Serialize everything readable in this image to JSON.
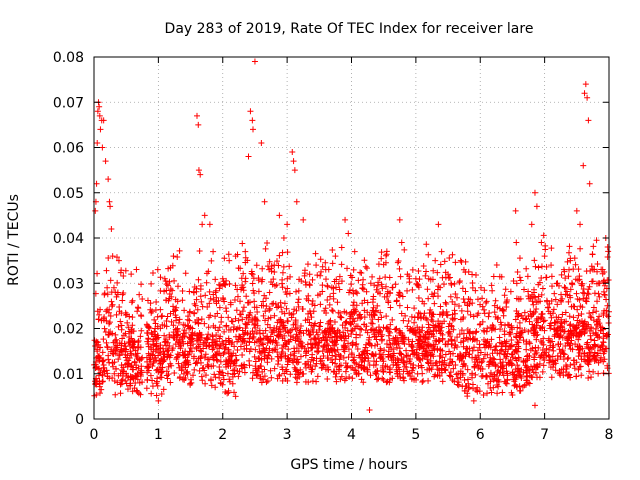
{
  "chart_data": {
    "type": "scatter",
    "title": "Day 283 of 2019, Rate Of TEC Index for receiver lare",
    "xlabel": "GPS time / hours",
    "ylabel": "ROTI / TECUs",
    "xlim": [
      0,
      8
    ],
    "ylim": [
      0,
      0.08
    ],
    "xticks": [
      "0",
      "1",
      "2",
      "3",
      "4",
      "5",
      "6",
      "7",
      "8"
    ],
    "yticks": [
      "0",
      "0.01",
      "0.02",
      "0.03",
      "0.04",
      "0.05",
      "0.06",
      "0.07",
      "0.08"
    ],
    "grid": true,
    "marker": "+",
    "color": "#ff0000",
    "density_note": "Dense cloud of several thousand points; representative values listed below",
    "points": [
      [
        0.02,
        0.046
      ],
      [
        0.03,
        0.048
      ],
      [
        0.04,
        0.052
      ],
      [
        0.05,
        0.061
      ],
      [
        0.06,
        0.068
      ],
      [
        0.07,
        0.07
      ],
      [
        0.08,
        0.069
      ],
      [
        0.09,
        0.067
      ],
      [
        0.1,
        0.064
      ],
      [
        0.12,
        0.066
      ],
      [
        0.13,
        0.06
      ],
      [
        0.15,
        0.066
      ],
      [
        0.18,
        0.057
      ],
      [
        0.22,
        0.053
      ],
      [
        0.24,
        0.048
      ],
      [
        0.25,
        0.047
      ],
      [
        0.27,
        0.042
      ],
      [
        0.29,
        0.036
      ],
      [
        0.31,
        0.029
      ],
      [
        0.33,
        0.028
      ],
      [
        0.35,
        0.023
      ],
      [
        0.07,
        0.022
      ],
      [
        0.08,
        0.023
      ],
      [
        0.06,
        0.017
      ],
      [
        0.45,
        0.015
      ],
      [
        0.55,
        0.017
      ],
      [
        0.62,
        0.016
      ],
      [
        0.85,
        0.016
      ],
      [
        0.95,
        0.02
      ],
      [
        1.0,
        0.018
      ],
      [
        1.1,
        0.031
      ],
      [
        1.2,
        0.027
      ],
      [
        1.3,
        0.026
      ],
      [
        1.4,
        0.024
      ],
      [
        1.55,
        0.028
      ],
      [
        1.6,
        0.067
      ],
      [
        1.62,
        0.065
      ],
      [
        1.63,
        0.055
      ],
      [
        1.65,
        0.054
      ],
      [
        1.68,
        0.043
      ],
      [
        1.72,
        0.045
      ],
      [
        1.8,
        0.043
      ],
      [
        1.85,
        0.037
      ],
      [
        1.9,
        0.026
      ],
      [
        2.0,
        0.031
      ],
      [
        2.1,
        0.035
      ],
      [
        2.2,
        0.036
      ],
      [
        2.3,
        0.029
      ],
      [
        2.35,
        0.037
      ],
      [
        2.4,
        0.058
      ],
      [
        2.43,
        0.068
      ],
      [
        2.46,
        0.066
      ],
      [
        2.47,
        0.064
      ],
      [
        2.5,
        0.079
      ],
      [
        2.6,
        0.061
      ],
      [
        2.65,
        0.048
      ],
      [
        2.72,
        0.033
      ],
      [
        2.8,
        0.034
      ],
      [
        2.88,
        0.045
      ],
      [
        2.95,
        0.04
      ],
      [
        3.0,
        0.043
      ],
      [
        3.08,
        0.059
      ],
      [
        3.1,
        0.057
      ],
      [
        3.12,
        0.055
      ],
      [
        3.15,
        0.048
      ],
      [
        3.25,
        0.044
      ],
      [
        3.35,
        0.032
      ],
      [
        3.45,
        0.034
      ],
      [
        3.6,
        0.033
      ],
      [
        3.75,
        0.036
      ],
      [
        3.9,
        0.044
      ],
      [
        3.95,
        0.041
      ],
      [
        4.05,
        0.037
      ],
      [
        4.2,
        0.024
      ],
      [
        4.3,
        0.03
      ],
      [
        4.4,
        0.025
      ],
      [
        4.55,
        0.027
      ],
      [
        4.7,
        0.026
      ],
      [
        4.75,
        0.044
      ],
      [
        4.78,
        0.039
      ],
      [
        4.9,
        0.031
      ],
      [
        5.0,
        0.031
      ],
      [
        5.1,
        0.026
      ],
      [
        5.2,
        0.031
      ],
      [
        5.3,
        0.035
      ],
      [
        5.35,
        0.043
      ],
      [
        5.4,
        0.037
      ],
      [
        5.5,
        0.032
      ],
      [
        5.6,
        0.024
      ],
      [
        5.7,
        0.022
      ],
      [
        5.85,
        0.023
      ],
      [
        6.0,
        0.021
      ],
      [
        6.1,
        0.026
      ],
      [
        6.2,
        0.02
      ],
      [
        6.3,
        0.018
      ],
      [
        6.4,
        0.016
      ],
      [
        6.55,
        0.046
      ],
      [
        6.56,
        0.039
      ],
      [
        6.7,
        0.022
      ],
      [
        6.8,
        0.043
      ],
      [
        6.85,
        0.05
      ],
      [
        6.88,
        0.047
      ],
      [
        6.95,
        0.039
      ],
      [
        7.0,
        0.036
      ],
      [
        7.1,
        0.034
      ],
      [
        7.2,
        0.03
      ],
      [
        7.3,
        0.033
      ],
      [
        7.4,
        0.035
      ],
      [
        7.5,
        0.046
      ],
      [
        7.55,
        0.043
      ],
      [
        7.6,
        0.056
      ],
      [
        7.62,
        0.072
      ],
      [
        7.64,
        0.074
      ],
      [
        7.66,
        0.071
      ],
      [
        7.68,
        0.066
      ],
      [
        7.7,
        0.052
      ],
      [
        7.75,
        0.033
      ],
      [
        7.85,
        0.027
      ],
      [
        7.95,
        0.04
      ],
      [
        7.98,
        0.038
      ],
      [
        4.28,
        0.002
      ],
      [
        6.85,
        0.003
      ],
      [
        1.0,
        0.004
      ],
      [
        2.2,
        0.005
      ],
      [
        5.9,
        0.004
      ]
    ]
  }
}
